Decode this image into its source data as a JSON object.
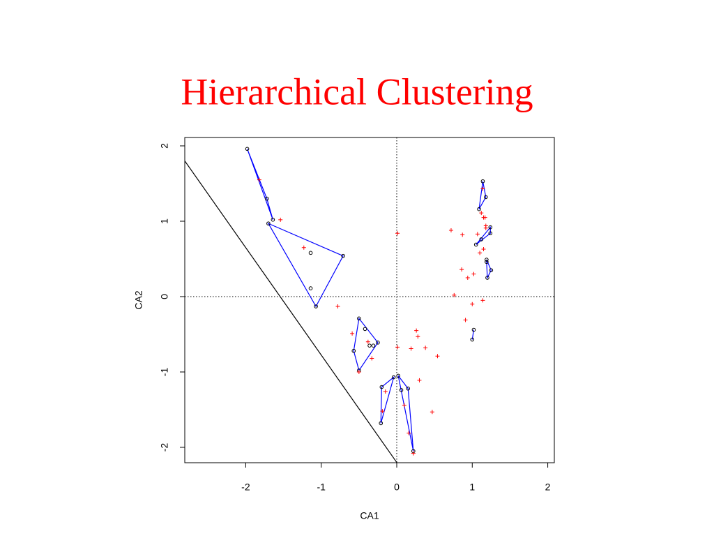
{
  "chart_data": {
    "type": "scatter",
    "title": "Hierarchical Clustering",
    "xlabel": "CA1",
    "ylabel": "CA2",
    "xlim": [
      -2.807,
      2.087
    ],
    "ylim": [
      -2.204,
      2.111
    ],
    "xticks": [
      -2,
      -1,
      0,
      1,
      2
    ],
    "yticks": [
      -2,
      -1,
      0,
      1,
      2
    ],
    "origin_lines": true,
    "reference_line": {
      "color": "#000000",
      "x": [
        -2.807,
        0
      ],
      "y": [
        1.8,
        -2.2
      ]
    },
    "series": [
      {
        "marker": "circle",
        "color": "#000000",
        "hull_color": "#0000ff",
        "x": [
          -1.98,
          -1.72,
          -1.64
        ],
        "y": [
          1.96,
          1.3,
          1.02
        ]
      },
      {
        "marker": "circle",
        "color": "#000000",
        "hull_color": "#0000ff",
        "x": [
          -1.7,
          -0.71,
          -1.07,
          -1.14,
          -1.14
        ],
        "y": [
          0.97,
          0.54,
          -0.13,
          0.58,
          0.11
        ]
      },
      {
        "marker": "circle",
        "color": "#000000",
        "hull_color": "#0000ff",
        "x": [
          -0.5,
          -0.25,
          -0.5,
          -0.57,
          -0.42,
          -0.36,
          -0.31
        ],
        "y": [
          -0.29,
          -0.61,
          -0.98,
          -0.72,
          -0.43,
          -0.65,
          -0.65
        ]
      },
      {
        "marker": "circle",
        "color": "#000000",
        "hull_color": "#0000ff",
        "x": [
          -0.21,
          -0.2,
          -0.04
        ],
        "y": [
          -1.68,
          -1.2,
          -1.07
        ]
      },
      {
        "marker": "circle",
        "color": "#000000",
        "hull_color": "#0000ff",
        "x": [
          0.02,
          0.15,
          0.22,
          0.06
        ],
        "y": [
          -1.05,
          -1.22,
          -2.05,
          -1.24
        ]
      },
      {
        "marker": "circle",
        "color": "#000000",
        "hull_color": "#0000ff",
        "x": [
          1.14,
          1.18,
          1.09
        ],
        "y": [
          1.53,
          1.32,
          1.16
        ]
      },
      {
        "marker": "circle",
        "color": "#000000",
        "hull_color": "#0000ff",
        "x": [
          1.24,
          1.24,
          1.05,
          1.12
        ],
        "y": [
          0.92,
          0.84,
          0.69,
          0.76
        ]
      },
      {
        "marker": "circle",
        "color": "#000000",
        "hull_color": "#0000ff",
        "x": [
          1.19,
          1.25,
          1.2,
          1.19
        ],
        "y": [
          0.49,
          0.35,
          0.25,
          0.46
        ]
      },
      {
        "marker": "circle",
        "color": "#000000",
        "hull_color": "#0000ff",
        "x": [
          1.02,
          1.0
        ],
        "y": [
          -0.44,
          -0.57
        ]
      },
      {
        "marker": "plus",
        "color": "#ff0000",
        "x": [
          -1.82,
          -1.54,
          -1.23,
          -0.78,
          -0.59,
          -0.38,
          -0.33,
          -0.5,
          0.01,
          0.01,
          0.19,
          0.26,
          0.28,
          0.38,
          0.54,
          0.3,
          -0.15,
          -0.19,
          0.1,
          0.16,
          0.22,
          0.47,
          0.72,
          0.87,
          1.07,
          1.12,
          1.15,
          1.17,
          1.18,
          1.14,
          1.1,
          1.15,
          1.18,
          0.86,
          0.94,
          1.02,
          1.14,
          0.76,
          1.0,
          0.91
        ],
        "y": [
          1.55,
          1.02,
          0.65,
          -0.13,
          -0.49,
          -0.6,
          -0.82,
          -1.0,
          0.84,
          -0.67,
          -0.69,
          -0.45,
          -0.53,
          -0.68,
          -0.79,
          -1.11,
          -1.26,
          -1.52,
          -1.44,
          -1.81,
          -2.08,
          -1.53,
          0.88,
          0.82,
          0.83,
          1.11,
          1.05,
          1.05,
          0.94,
          1.43,
          0.58,
          0.63,
          0.91,
          0.36,
          0.25,
          0.3,
          -0.05,
          0.02,
          -0.1,
          -0.31
        ]
      }
    ]
  }
}
